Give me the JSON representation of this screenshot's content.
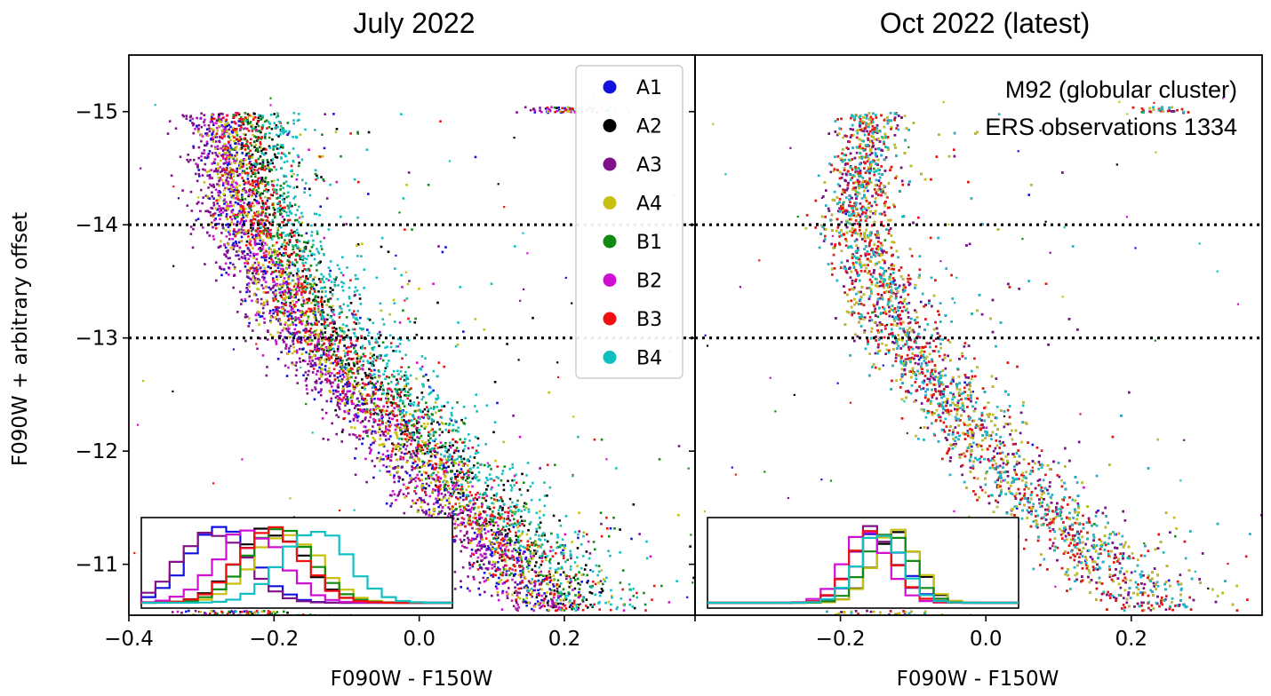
{
  "chart_data": {
    "type": "scatter",
    "xlabel": "F090W - F150W",
    "ylabel": "F090W + arbitrary offset",
    "xlim": [
      -0.4,
      0.38
    ],
    "ylim": [
      -10.55,
      -15.5
    ],
    "x_ticks": [
      "−0.4",
      "−0.2",
      "0.0",
      "0.2"
    ],
    "x_tick_values": [
      -0.4,
      -0.2,
      0.0,
      0.2
    ],
    "y_ticks": [
      "−15",
      "−14",
      "−13",
      "−12",
      "−11"
    ],
    "y_tick_values": [
      -15,
      -14,
      -13,
      -12,
      -11
    ],
    "reference_lines_y": [
      -14,
      -13
    ],
    "legend_placement": "top-right of left panel",
    "series": [
      {
        "name": "A1",
        "color": "#1010e0"
      },
      {
        "name": "A2",
        "color": "#000000"
      },
      {
        "name": "A3",
        "color": "#80108a"
      },
      {
        "name": "A4",
        "color": "#c8c010"
      },
      {
        "name": "B1",
        "color": "#108a10"
      },
      {
        "name": "B2",
        "color": "#d010d0"
      },
      {
        "name": "B3",
        "color": "#f01010"
      },
      {
        "name": "B4",
        "color": "#10c0c0"
      }
    ],
    "panels": [
      {
        "title": "July 2022",
        "annotation": [],
        "ridge_line": {
          "mag": [
            -15,
            -14,
            -13,
            -12,
            -11,
            -10.6
          ],
          "color_offsets": {
            "A1": -0.06,
            "A2": -0.02,
            "A3": -0.085,
            "A4": -0.05,
            "B1": -0.02,
            "B2": -0.06,
            "B3": -0.03,
            "B4": 0.02
          },
          "base_color": [
            -0.22,
            -0.19,
            -0.1,
            0.04,
            0.18,
            0.24
          ]
        },
        "inset_histogram_peaks": {
          "A1": -0.26,
          "A2": -0.19,
          "A3": -0.27,
          "A4": -0.17,
          "B1": -0.18,
          "B2": -0.22,
          "B3": -0.19,
          "B4": -0.13
        }
      },
      {
        "title": "Oct 2022 (latest)",
        "annotation": [
          "M92 (globular cluster)",
          "ERS observations 1334"
        ],
        "ridge_line": {
          "mag": [
            -15,
            -14,
            -13,
            -12,
            -11,
            -10.6
          ],
          "color_offsets": {
            "A1": 0,
            "A2": 0,
            "A3": 0,
            "A4": 0,
            "B1": 0,
            "B2": 0,
            "B3": 0,
            "B4": 0
          },
          "base_color": [
            -0.16,
            -0.18,
            -0.12,
            0.0,
            0.16,
            0.24
          ]
        },
        "inset_histogram_peaks": {
          "A1": -0.13,
          "A2": -0.11,
          "A3": -0.14,
          "A4": -0.11,
          "B1": -0.12,
          "B2": -0.15,
          "B3": -0.14,
          "B4": -0.13
        }
      }
    ]
  }
}
